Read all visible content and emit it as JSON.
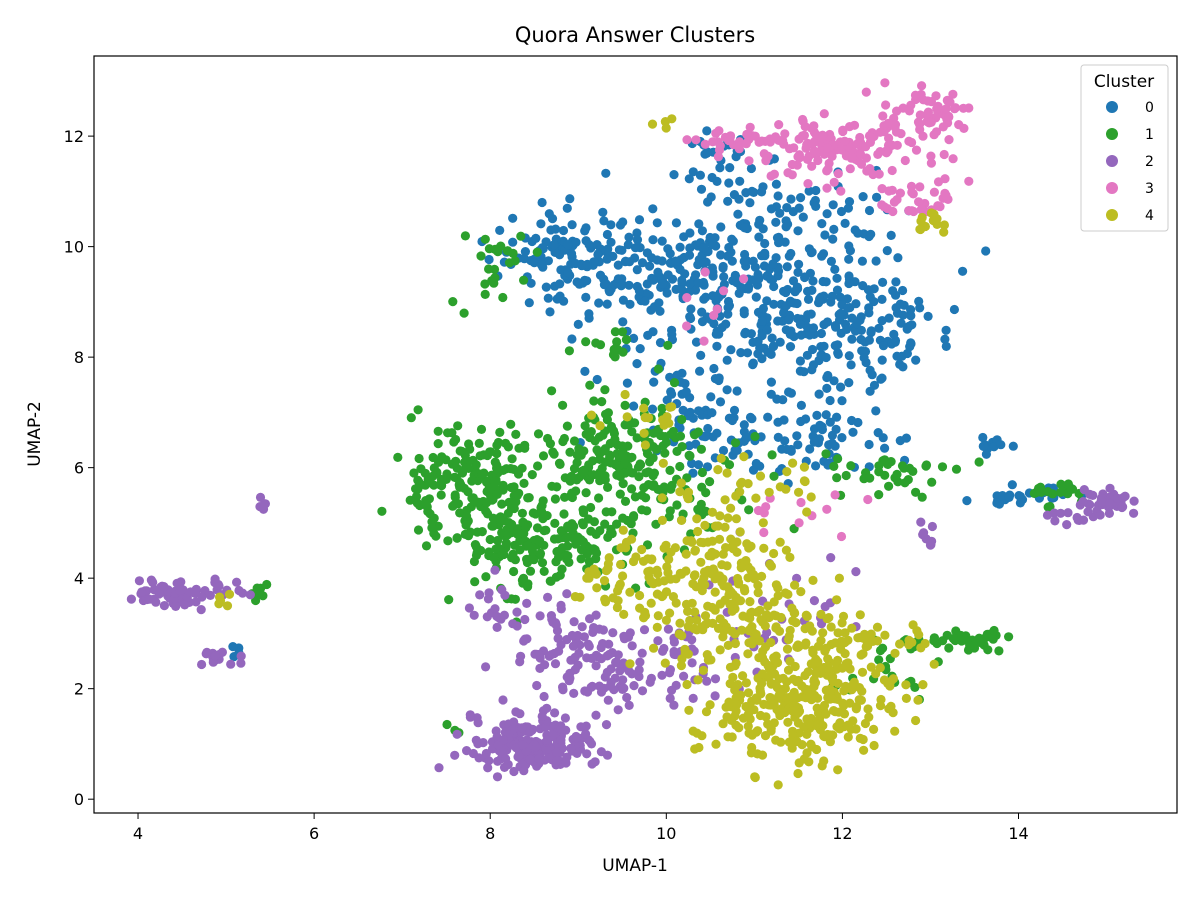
{
  "chart_data": {
    "type": "scatter",
    "title": "Quora Answer Clusters",
    "xlabel": "UMAP-1",
    "ylabel": "UMAP-2",
    "xlim": [
      3.5,
      15.8
    ],
    "ylim": [
      -0.25,
      13.45
    ],
    "x_ticks": [
      4,
      6,
      8,
      10,
      12,
      14
    ],
    "y_ticks": [
      0,
      2,
      4,
      6,
      8,
      10,
      12
    ],
    "grid": false,
    "legend": {
      "title": "Cluster",
      "placement": "top-right"
    },
    "series": [
      {
        "name": "0",
        "color": "#1f77b4",
        "clusters": [
          {
            "cx": 10.8,
            "cy": 9.3,
            "sx": 0.8,
            "sy": 0.8,
            "n": 320
          },
          {
            "cx": 9.3,
            "cy": 9.6,
            "sx": 0.5,
            "sy": 0.5,
            "n": 120
          },
          {
            "cx": 12.2,
            "cy": 8.4,
            "sx": 0.5,
            "sy": 0.6,
            "n": 140
          },
          {
            "cx": 11.3,
            "cy": 6.5,
            "sx": 0.7,
            "sy": 0.35,
            "n": 100
          },
          {
            "cx": 8.6,
            "cy": 10.0,
            "sx": 0.3,
            "sy": 0.2,
            "n": 35
          },
          {
            "cx": 10.5,
            "cy": 11.5,
            "sx": 0.3,
            "sy": 0.3,
            "n": 30
          },
          {
            "cx": 11.7,
            "cy": 10.6,
            "sx": 0.6,
            "sy": 0.3,
            "n": 40
          },
          {
            "cx": 13.7,
            "cy": 6.4,
            "sx": 0.1,
            "sy": 0.1,
            "n": 12
          },
          {
            "cx": 14.5,
            "cy": 5.5,
            "sx": 0.2,
            "sy": 0.08,
            "n": 15
          },
          {
            "cx": 13.8,
            "cy": 5.4,
            "sx": 0.15,
            "sy": 0.1,
            "n": 12
          },
          {
            "cx": 5.1,
            "cy": 2.7,
            "sx": 0.05,
            "sy": 0.08,
            "n": 4
          },
          {
            "cx": 10.3,
            "cy": 7.0,
            "sx": 0.3,
            "sy": 0.4,
            "n": 40
          }
        ]
      },
      {
        "name": "1",
        "color": "#2ca02c",
        "clusters": [
          {
            "cx": 7.7,
            "cy": 5.8,
            "sx": 0.35,
            "sy": 0.5,
            "n": 150
          },
          {
            "cx": 8.5,
            "cy": 4.7,
            "sx": 0.6,
            "sy": 0.45,
            "n": 220
          },
          {
            "cx": 9.4,
            "cy": 6.3,
            "sx": 0.5,
            "sy": 0.5,
            "n": 170
          },
          {
            "cx": 10.0,
            "cy": 5.4,
            "sx": 0.5,
            "sy": 0.4,
            "n": 60
          },
          {
            "cx": 8.1,
            "cy": 9.6,
            "sx": 0.25,
            "sy": 0.3,
            "n": 25
          },
          {
            "cx": 13.3,
            "cy": 2.9,
            "sx": 0.35,
            "sy": 0.1,
            "n": 40
          },
          {
            "cx": 12.5,
            "cy": 5.9,
            "sx": 0.6,
            "sy": 0.2,
            "n": 40
          },
          {
            "cx": 14.5,
            "cy": 5.5,
            "sx": 0.2,
            "sy": 0.1,
            "n": 18
          },
          {
            "cx": 5.4,
            "cy": 3.75,
            "sx": 0.08,
            "sy": 0.08,
            "n": 8
          },
          {
            "cx": 9.3,
            "cy": 8.2,
            "sx": 0.2,
            "sy": 0.15,
            "n": 15
          },
          {
            "cx": 7.6,
            "cy": 1.3,
            "sx": 0.05,
            "sy": 0.05,
            "n": 3
          },
          {
            "cx": 12.4,
            "cy": 2.3,
            "sx": 0.3,
            "sy": 0.3,
            "n": 20
          }
        ]
      },
      {
        "name": "2",
        "color": "#9467bd",
        "clusters": [
          {
            "cx": 8.5,
            "cy": 1.0,
            "sx": 0.35,
            "sy": 0.25,
            "n": 200
          },
          {
            "cx": 9.3,
            "cy": 2.4,
            "sx": 0.45,
            "sy": 0.45,
            "n": 100
          },
          {
            "cx": 8.5,
            "cy": 3.2,
            "sx": 0.4,
            "sy": 0.4,
            "n": 50
          },
          {
            "cx": 4.35,
            "cy": 3.7,
            "sx": 0.18,
            "sy": 0.12,
            "n": 60
          },
          {
            "cx": 4.9,
            "cy": 2.6,
            "sx": 0.1,
            "sy": 0.12,
            "n": 15
          },
          {
            "cx": 5.0,
            "cy": 3.8,
            "sx": 0.15,
            "sy": 0.2,
            "n": 12
          },
          {
            "cx": 15.0,
            "cy": 5.4,
            "sx": 0.2,
            "sy": 0.1,
            "n": 30
          },
          {
            "cx": 14.7,
            "cy": 5.1,
            "sx": 0.2,
            "sy": 0.08,
            "n": 15
          },
          {
            "cx": 5.4,
            "cy": 5.35,
            "sx": 0.05,
            "sy": 0.05,
            "n": 5
          },
          {
            "cx": 11.2,
            "cy": 3.4,
            "sx": 0.5,
            "sy": 0.5,
            "n": 30
          },
          {
            "cx": 13.0,
            "cy": 4.8,
            "sx": 0.05,
            "sy": 0.2,
            "n": 8
          },
          {
            "cx": 10.3,
            "cy": 2.5,
            "sx": 0.3,
            "sy": 0.4,
            "n": 30
          }
        ]
      },
      {
        "name": "3",
        "color": "#e377c2",
        "clusters": [
          {
            "cx": 12.0,
            "cy": 11.7,
            "sx": 0.45,
            "sy": 0.3,
            "n": 140
          },
          {
            "cx": 13.0,
            "cy": 12.4,
            "sx": 0.25,
            "sy": 0.2,
            "n": 60
          },
          {
            "cx": 10.8,
            "cy": 11.9,
            "sx": 0.3,
            "sy": 0.1,
            "n": 30
          },
          {
            "cx": 12.8,
            "cy": 10.8,
            "sx": 0.25,
            "sy": 0.15,
            "n": 30
          },
          {
            "cx": 11.5,
            "cy": 5.0,
            "sx": 0.4,
            "sy": 0.4,
            "n": 12
          },
          {
            "cx": 10.5,
            "cy": 9.0,
            "sx": 0.4,
            "sy": 0.4,
            "n": 8
          }
        ]
      },
      {
        "name": "4",
        "color": "#bcbd22",
        "clusters": [
          {
            "cx": 11.5,
            "cy": 1.8,
            "sx": 0.55,
            "sy": 0.55,
            "n": 300
          },
          {
            "cx": 10.9,
            "cy": 3.3,
            "sx": 0.6,
            "sy": 0.5,
            "n": 170
          },
          {
            "cx": 10.3,
            "cy": 4.5,
            "sx": 0.45,
            "sy": 0.4,
            "n": 90
          },
          {
            "cx": 9.5,
            "cy": 3.9,
            "sx": 0.3,
            "sy": 0.4,
            "n": 40
          },
          {
            "cx": 12.2,
            "cy": 2.8,
            "sx": 0.4,
            "sy": 0.3,
            "n": 40
          },
          {
            "cx": 11.0,
            "cy": 5.6,
            "sx": 0.4,
            "sy": 0.3,
            "n": 30
          },
          {
            "cx": 13.0,
            "cy": 10.4,
            "sx": 0.1,
            "sy": 0.1,
            "n": 12
          },
          {
            "cx": 10.0,
            "cy": 12.2,
            "sx": 0.08,
            "sy": 0.08,
            "n": 4
          },
          {
            "cx": 5.05,
            "cy": 3.65,
            "sx": 0.08,
            "sy": 0.08,
            "n": 5
          },
          {
            "cx": 9.8,
            "cy": 6.9,
            "sx": 0.3,
            "sy": 0.2,
            "n": 15
          }
        ]
      }
    ]
  }
}
